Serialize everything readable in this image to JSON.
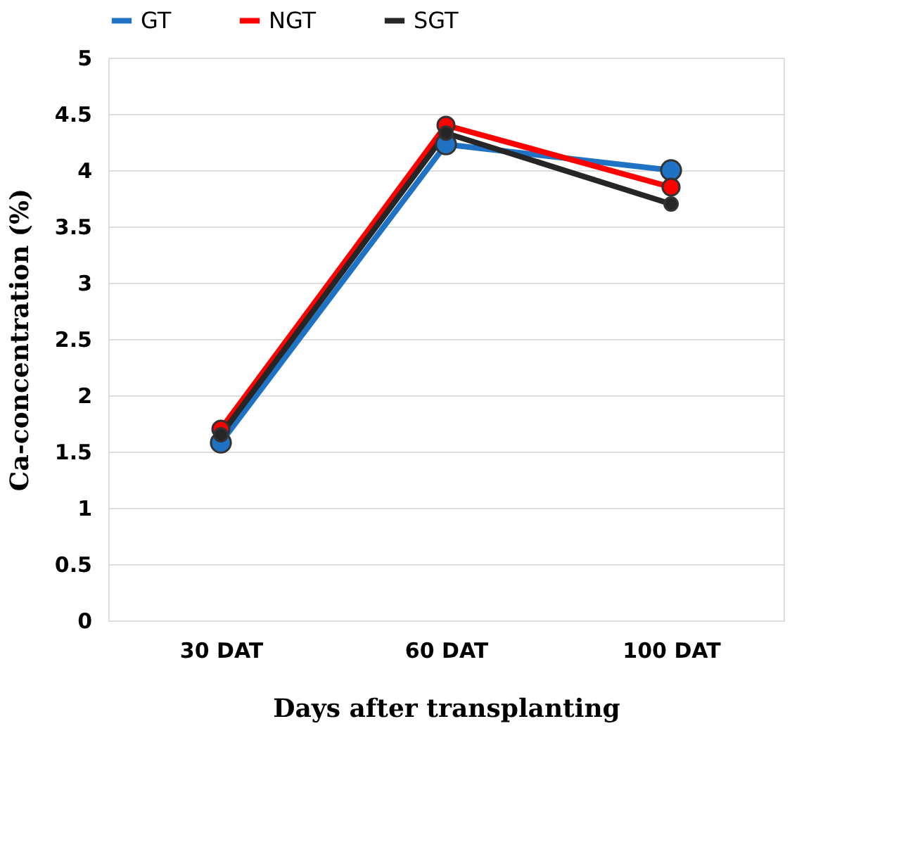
{
  "chart_data": {
    "type": "line",
    "xlabel": "Days after transplanting",
    "ylabel": "Ca-concentration (%)",
    "categories": [
      "30 DAT",
      "60 DAT",
      "100 DAT"
    ],
    "series": [
      {
        "name": "GT",
        "color": "#1f72c4",
        "values": [
          1.58,
          4.23,
          4.0
        ]
      },
      {
        "name": "NGT",
        "color": "#ff0000",
        "values": [
          1.7,
          4.4,
          3.85
        ]
      },
      {
        "name": "SGT",
        "color": "#262626",
        "values": [
          1.65,
          4.33,
          3.7
        ]
      }
    ],
    "ylim": [
      0,
      5
    ],
    "yticks": [
      0,
      0.5,
      1,
      1.5,
      2,
      2.5,
      3,
      3.5,
      4,
      4.5,
      5
    ],
    "grid": "y",
    "legend": "top",
    "marker": "circle",
    "line_style": "solid"
  }
}
